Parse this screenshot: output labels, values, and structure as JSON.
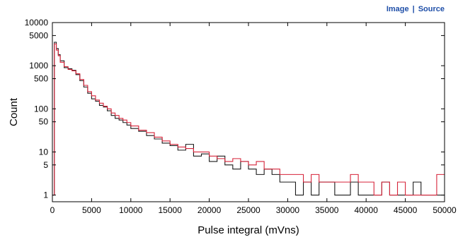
{
  "links": {
    "image": "Image",
    "separator": "|",
    "source": "Source"
  },
  "colors": {
    "black_series": "#1a1a1a",
    "red_series": "#d6243a",
    "link": "#1f4fa8"
  },
  "chart_data": {
    "type": "line",
    "style": "step-histogram",
    "title": "",
    "xlabel": "Pulse integral (mVns)",
    "ylabel": "Count",
    "xlim": [
      0,
      50000
    ],
    "ylim": [
      0.7,
      10000
    ],
    "yscale": "log",
    "grid": false,
    "legend": "none",
    "xticks": [
      0,
      5000,
      10000,
      15000,
      20000,
      25000,
      30000,
      35000,
      40000,
      45000,
      50000
    ],
    "xtick_labels": [
      "0",
      "5000",
      "10000",
      "15000",
      "20000",
      "25000",
      "30000",
      "35000",
      "40000",
      "45000",
      "50000"
    ],
    "yticks": [
      1,
      5,
      10,
      50,
      100,
      500,
      1000,
      5000,
      10000
    ],
    "ytick_labels": [
      "1",
      "5",
      "10",
      "50",
      "100",
      "500",
      "1000",
      "5000",
      "10000"
    ],
    "series": [
      {
        "color": "#1a1a1a",
        "x": [
          0,
          250,
          500,
          750,
          1000,
          1500,
          2000,
          2500,
          3000,
          3500,
          4000,
          4500,
          5000,
          5500,
          6000,
          6500,
          7000,
          7500,
          8000,
          8500,
          9000,
          9500,
          10000,
          11000,
          12000,
          13000,
          14000,
          15000,
          16000,
          17000,
          18000,
          19000,
          20000,
          21000,
          22000,
          23000,
          24000,
          25000,
          26000,
          27000,
          28000,
          29000,
          30000,
          31000,
          32000,
          33000,
          34000,
          35000,
          36000,
          37000,
          38000,
          39000,
          40000,
          41000,
          42000,
          43000,
          44000,
          45000,
          46000,
          47000,
          48000,
          49000
        ],
        "y": [
          1,
          3500,
          2500,
          1800,
          1300,
          900,
          850,
          780,
          620,
          450,
          320,
          230,
          170,
          150,
          120,
          110,
          90,
          70,
          60,
          55,
          48,
          42,
          35,
          30,
          24,
          20,
          16,
          14,
          11,
          15,
          8,
          9,
          6,
          8,
          5,
          4,
          6,
          4,
          3,
          4,
          3,
          2,
          2,
          1,
          2,
          1,
          2,
          2,
          1,
          1,
          2,
          1,
          1,
          1,
          2,
          1,
          1,
          1,
          2,
          1,
          1,
          1
        ]
      },
      {
        "color": "#d6243a",
        "x": [
          0,
          250,
          500,
          750,
          1000,
          1500,
          2000,
          2500,
          3000,
          3500,
          4000,
          4500,
          5000,
          5500,
          6000,
          6500,
          7000,
          7500,
          8000,
          8500,
          9000,
          9500,
          10000,
          11000,
          12000,
          13000,
          14000,
          15000,
          16000,
          17000,
          18000,
          19000,
          20000,
          21000,
          22000,
          23000,
          24000,
          25000,
          26000,
          27000,
          28000,
          29000,
          30000,
          31000,
          32000,
          33000,
          34000,
          35000,
          36000,
          37000,
          38000,
          39000,
          40000,
          41000,
          42000,
          43000,
          44000,
          45000,
          46000,
          47000,
          48000,
          49000
        ],
        "y": [
          1,
          3200,
          2300,
          1700,
          1200,
          950,
          820,
          760,
          650,
          480,
          350,
          250,
          200,
          160,
          135,
          115,
          100,
          80,
          70,
          60,
          55,
          48,
          40,
          32,
          28,
          22,
          18,
          15,
          13,
          12,
          10,
          10,
          8,
          7,
          6,
          7,
          6,
          5,
          6,
          4,
          4,
          3,
          3,
          3,
          2,
          3,
          2,
          2,
          2,
          2,
          3,
          2,
          2,
          1,
          2,
          1,
          2,
          1,
          1,
          1,
          1,
          3
        ]
      }
    ]
  }
}
